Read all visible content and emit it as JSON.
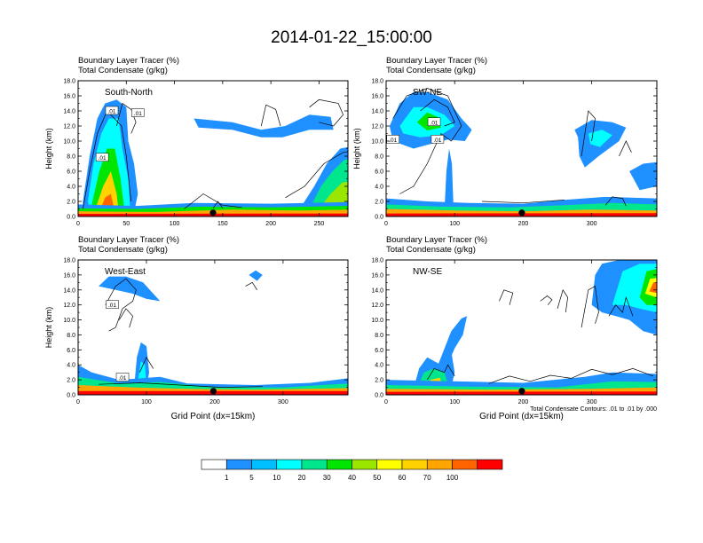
{
  "figure": {
    "title": "2014-01-22_15:00:00",
    "xaxis_label": "Grid Point (dx=15km)",
    "yaxis_label": "Height (km)",
    "contour_note": "Total Condensate Contours: .01 to .01 by .000",
    "field_line1": "Boundary Layer Tracer   (%)",
    "field_line2": "Total Condensate   (g/kg)"
  },
  "colorbar": {
    "levels": [
      "1",
      "5",
      "10",
      "20",
      "30",
      "40",
      "50",
      "60",
      "70",
      "100"
    ],
    "colors": [
      "#ffffff",
      "#1e90ff",
      "#00bfff",
      "#00ffff",
      "#00e68c",
      "#00e600",
      "#9be600",
      "#ffff00",
      "#ffd200",
      "#ffa500",
      "#ff6400",
      "#ff0000"
    ]
  },
  "chart_data": [
    {
      "type": "heatmap",
      "panel_label": "South-North",
      "ylabel": "Height (km)",
      "ylim": [
        0,
        18
      ],
      "xlim": [
        0,
        280
      ],
      "yticks": [
        "0.0",
        "2.0",
        "4.0",
        "6.0",
        "8.0",
        "10.0",
        "12.0",
        "14.0",
        "16.0",
        "18.0"
      ],
      "xticks": [
        "0",
        "50",
        "100",
        "150",
        "200",
        "250"
      ],
      "contour_labels": [
        ".01",
        ".01",
        ".01"
      ],
      "marker_x": 140
    },
    {
      "type": "heatmap",
      "panel_label": "SW-NE",
      "ylabel": "Height (km)",
      "ylim": [
        0,
        18
      ],
      "xlim": [
        0,
        395
      ],
      "yticks": [
        "0.0",
        "2.0",
        "4.0",
        "6.0",
        "8.0",
        "10.0",
        "12.0",
        "14.0",
        "16.0",
        "18.0"
      ],
      "xticks": [
        "0",
        "100",
        "200",
        "300"
      ],
      "contour_labels": [
        ".01",
        ".01",
        ".01"
      ],
      "marker_x": 198
    },
    {
      "type": "heatmap",
      "panel_label": "West-East",
      "ylabel": "Height (km)",
      "xlabel": "Grid Point (dx=15km)",
      "ylim": [
        0,
        18
      ],
      "xlim": [
        0,
        395
      ],
      "yticks": [
        "0.0",
        "2.0",
        "4.0",
        "6.0",
        "8.0",
        "10.0",
        "12.0",
        "14.0",
        "16.0",
        "18.0"
      ],
      "xticks": [
        "0",
        "100",
        "200",
        "300"
      ],
      "contour_labels": [
        ".01",
        ".01"
      ],
      "marker_x": 198
    },
    {
      "type": "heatmap",
      "panel_label": "NW-SE",
      "xlabel": "Grid Point (dx=15km)",
      "ylim": [
        0,
        18
      ],
      "xlim": [
        0,
        395
      ],
      "yticks": [
        "0.0",
        "2.0",
        "4.0",
        "6.0",
        "8.0",
        "10.0",
        "12.0",
        "14.0",
        "16.0",
        "18.0"
      ],
      "xticks": [
        "0",
        "100",
        "200",
        "300"
      ],
      "contour_labels": [],
      "marker_x": 198
    }
  ]
}
